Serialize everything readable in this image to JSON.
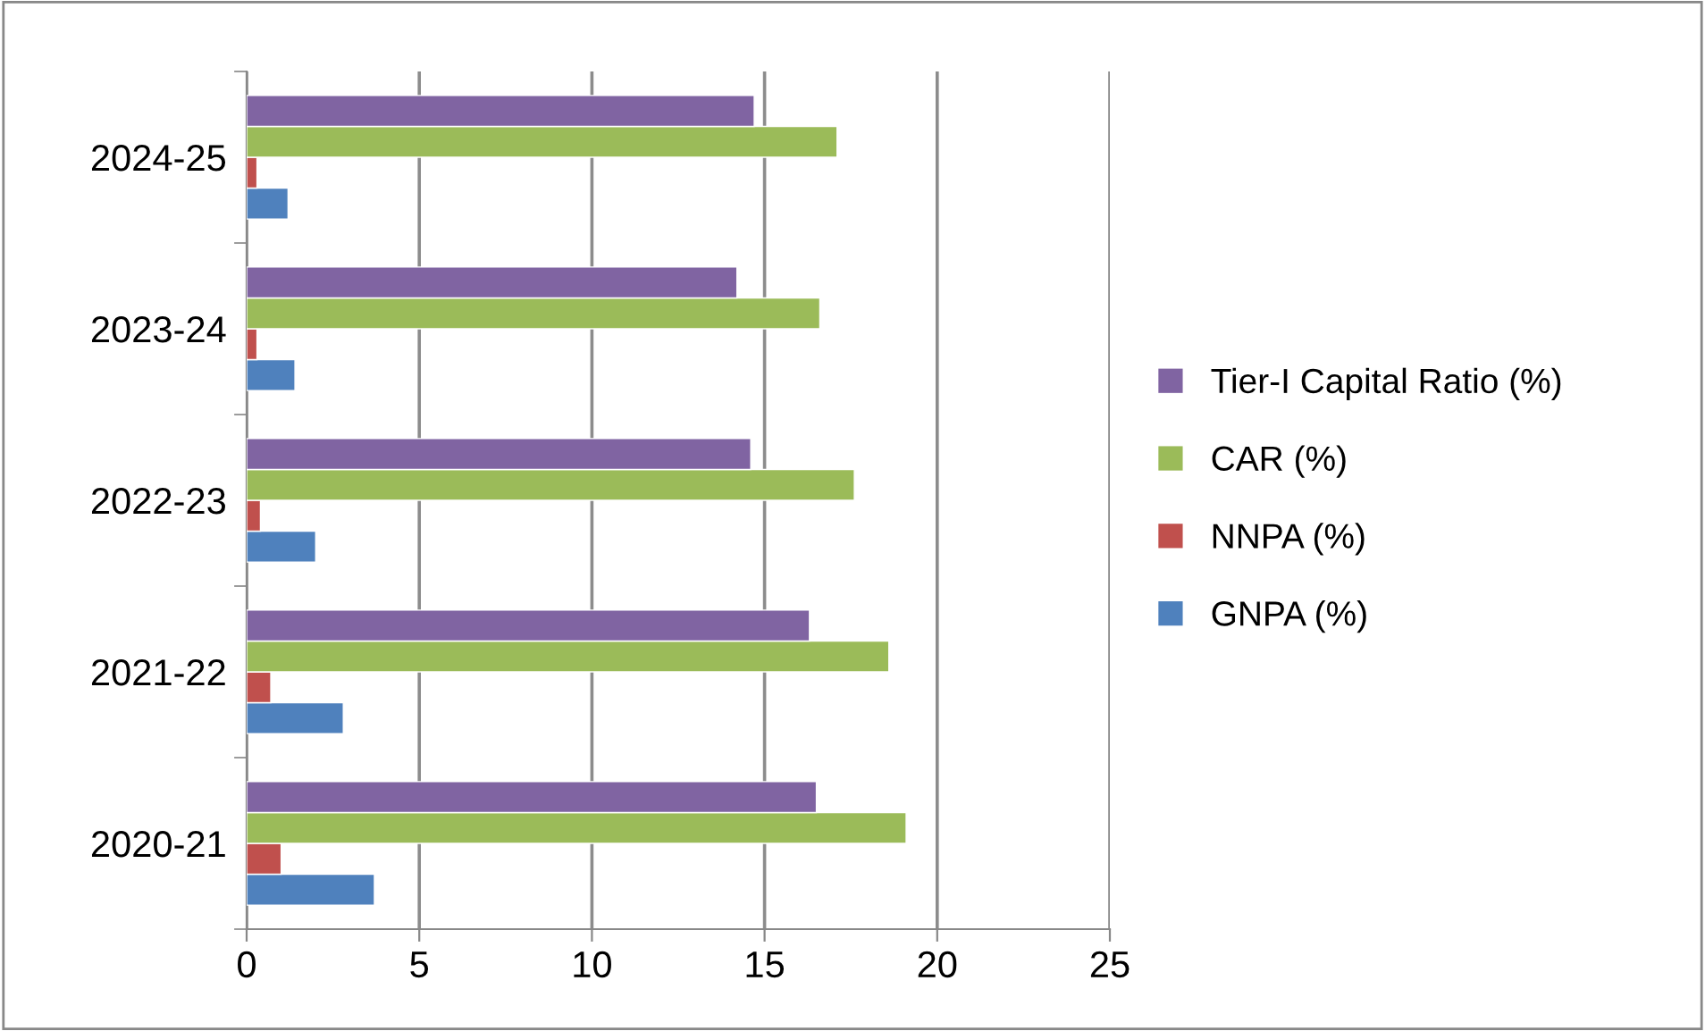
{
  "chart_data": {
    "type": "bar",
    "orientation": "horizontal",
    "categories": [
      "2024-25",
      "2023-24",
      "2022-23",
      "2021-22",
      "2020-21"
    ],
    "series": [
      {
        "name": "GNPA (%)",
        "color": "#4f81bd",
        "values": [
          1.2,
          1.4,
          2.0,
          2.8,
          3.7
        ]
      },
      {
        "name": "NNPA (%)",
        "color": "#c0504d",
        "values": [
          0.3,
          0.3,
          0.4,
          0.7,
          1.0
        ]
      },
      {
        "name": "CAR (%)",
        "color": "#9bbb59",
        "values": [
          17.1,
          16.6,
          17.6,
          18.6,
          19.1
        ]
      },
      {
        "name": "Tier-I Capital Ratio (%)",
        "color": "#8064a2",
        "values": [
          14.7,
          14.2,
          14.6,
          16.3,
          16.5
        ]
      }
    ],
    "xlim": [
      0,
      25
    ],
    "xticks": [
      0,
      5,
      10,
      15,
      20,
      25
    ],
    "grid": "x",
    "legend": "right"
  }
}
